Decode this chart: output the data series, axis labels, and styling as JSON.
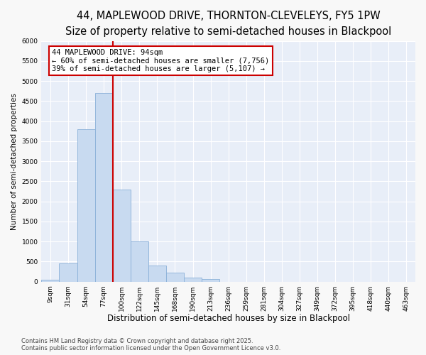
{
  "title": "44, MAPLEWOOD DRIVE, THORNTON-CLEVELEYS, FY5 1PW",
  "subtitle": "Size of property relative to semi-detached houses in Blackpool",
  "xlabel": "Distribution of semi-detached houses by size in Blackpool",
  "ylabel": "Number of semi-detached properties",
  "categories": [
    "9sqm",
    "31sqm",
    "54sqm",
    "77sqm",
    "100sqm",
    "122sqm",
    "145sqm",
    "168sqm",
    "190sqm",
    "213sqm",
    "236sqm",
    "259sqm",
    "281sqm",
    "304sqm",
    "327sqm",
    "349sqm",
    "372sqm",
    "395sqm",
    "418sqm",
    "440sqm",
    "463sqm"
  ],
  "values": [
    50,
    450,
    3800,
    4700,
    2300,
    1000,
    400,
    230,
    100,
    70,
    0,
    0,
    0,
    0,
    0,
    0,
    0,
    0,
    0,
    0,
    0
  ],
  "bar_color": "#c8daf0",
  "bar_edgecolor": "#8ab0d8",
  "vline_color": "#cc0000",
  "annotation_text": "44 MAPLEWOOD DRIVE: 94sqm\n← 60% of semi-detached houses are smaller (7,756)\n39% of semi-detached houses are larger (5,107) →",
  "annotation_box_color": "#cc0000",
  "ylim": [
    0,
    6000
  ],
  "yticks": [
    0,
    500,
    1000,
    1500,
    2000,
    2500,
    3000,
    3500,
    4000,
    4500,
    5000,
    5500,
    6000
  ],
  "plot_bg_color": "#e8eef8",
  "grid_color": "#ffffff",
  "fig_bg_color": "#f8f8f8",
  "footnote": "Contains HM Land Registry data © Crown copyright and database right 2025.\nContains public sector information licensed under the Open Government Licence v3.0.",
  "title_fontsize": 10.5,
  "subtitle_fontsize": 9,
  "xlabel_fontsize": 8.5,
  "ylabel_fontsize": 7.5,
  "tick_fontsize": 6.5,
  "annotation_fontsize": 7.5,
  "footnote_fontsize": 6
}
